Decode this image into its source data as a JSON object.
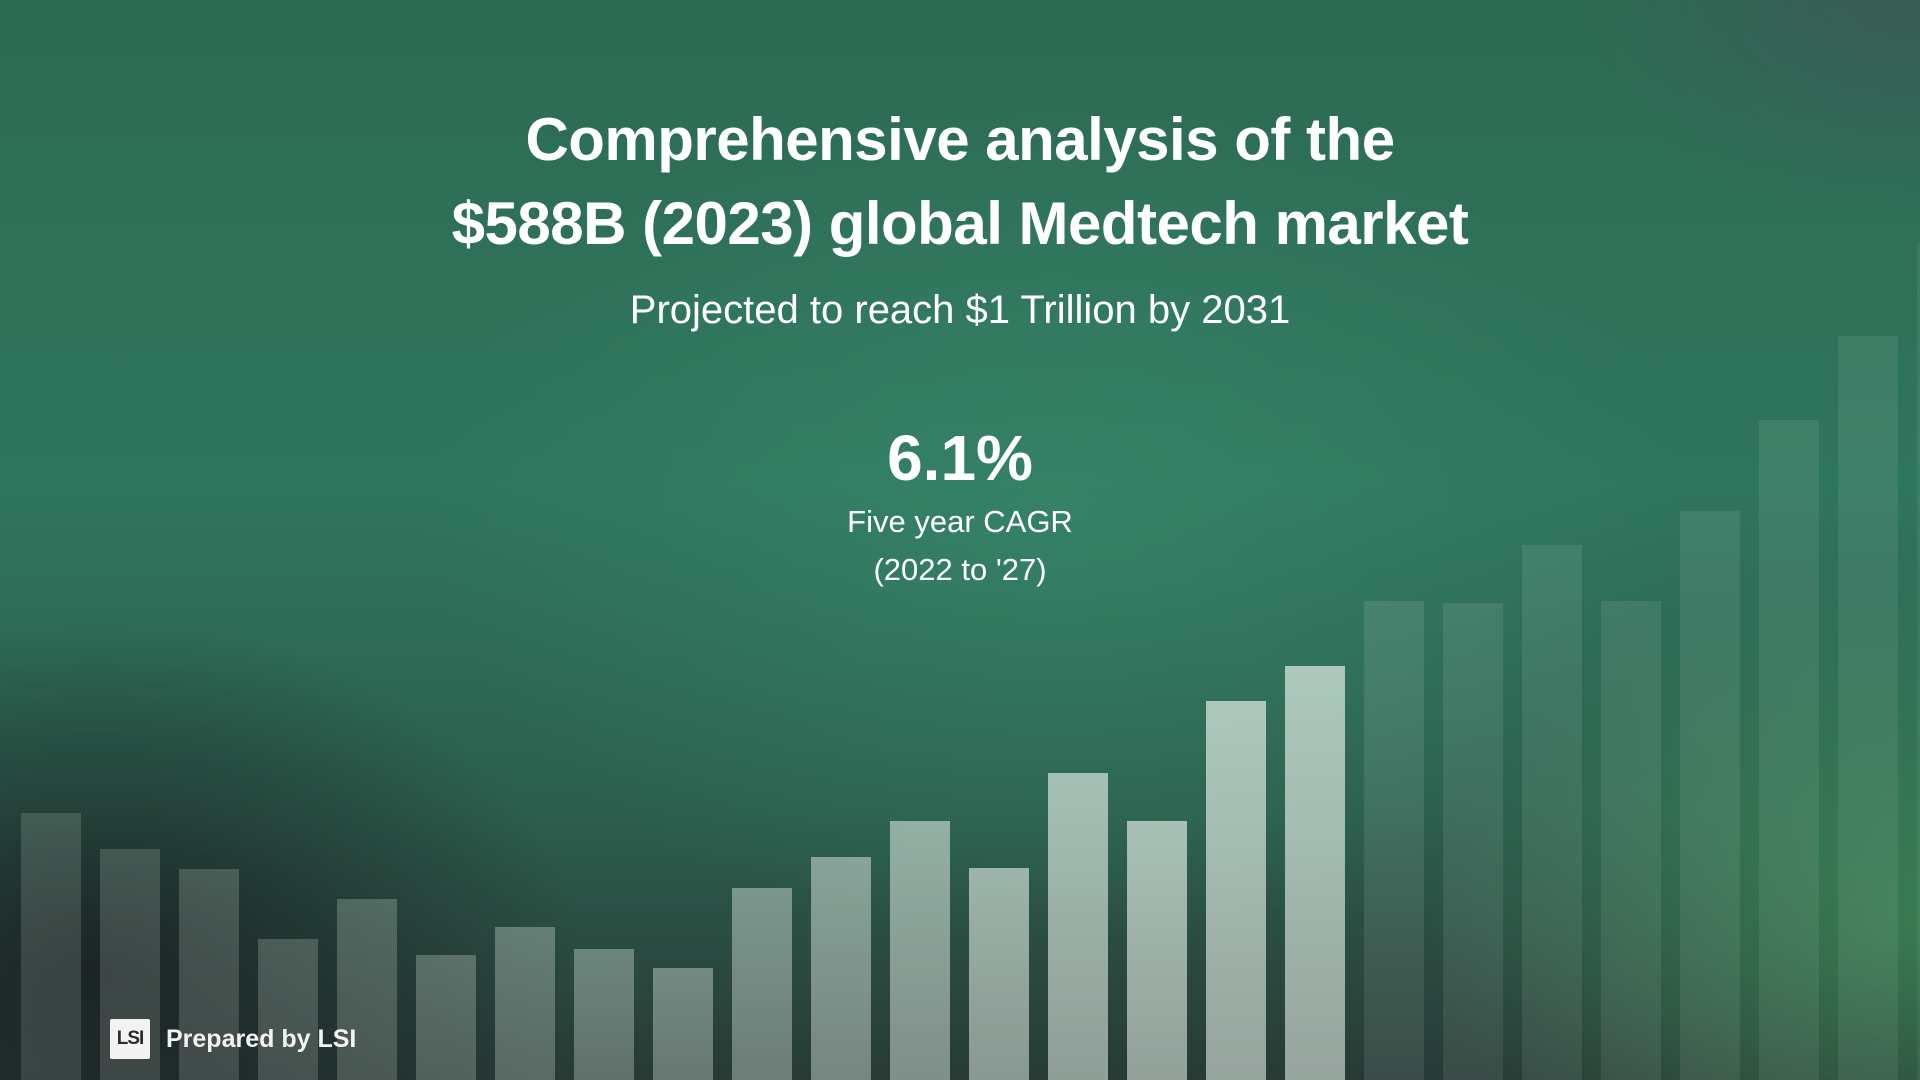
{
  "slide": {
    "title_line_1": "Comprehensive analysis of the",
    "title_line_2": "$588B (2023) global Medtech market",
    "subtitle": "Projected to reach $1 Trillion by 2031"
  },
  "stat": {
    "value": "6.1%",
    "label_line_1": "Five year CAGR",
    "label_line_2": "(2022 to '27)"
  },
  "footer": {
    "logo_text": "LSI",
    "prepared_label": "Prepared by LSI"
  },
  "colors": {
    "bar_color": "#dfe8e2",
    "text_color": "#ffffff"
  },
  "chart_data": {
    "type": "bar",
    "title": "",
    "xlabel": "",
    "ylabel": "",
    "values": [
      267,
      231,
      211,
      141,
      181,
      125,
      153,
      131,
      112,
      192,
      223,
      259,
      212,
      307,
      259,
      379,
      414,
      479,
      477,
      535,
      479,
      569,
      660,
      744,
      837
    ],
    "emphasis": [
      0.16,
      0.18,
      0.2,
      0.22,
      0.24,
      0.28,
      0.32,
      0.36,
      0.4,
      0.44,
      0.5,
      0.56,
      0.62,
      0.66,
      0.68,
      0.7,
      0.7,
      0.12,
      0.11,
      0.1,
      0.1,
      0.1,
      0.09,
      0.09,
      0.08
    ],
    "ylim": [
      0,
      1080
    ]
  }
}
